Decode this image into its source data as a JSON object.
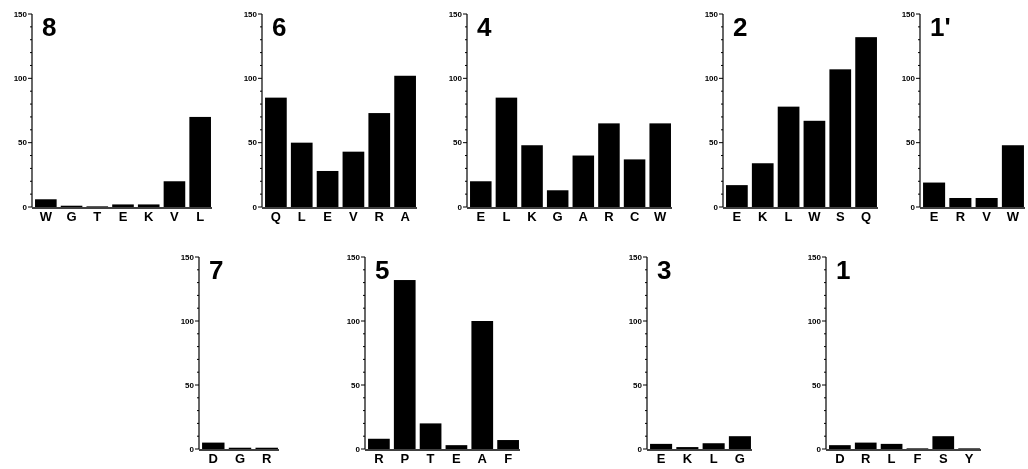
{
  "chart_data": [
    {
      "type": "bar",
      "title": "8",
      "categories": [
        "W",
        "G",
        "T",
        "E",
        "K",
        "V",
        "L"
      ],
      "values": [
        6,
        1,
        0.5,
        2,
        2,
        20,
        70
      ],
      "color": "#000000",
      "ylim": [
        0,
        150
      ],
      "yticks": [
        0,
        {
          "value": 10,
          "label": null
        },
        {
          "value": 20,
          "label": null
        },
        {
          "value": 30,
          "label": null
        },
        {
          "value": 40,
          "label": null
        },
        50,
        {
          "value": 60,
          "label": null
        },
        {
          "value": 70,
          "label": null
        },
        {
          "value": 80,
          "label": null
        },
        {
          "value": 90,
          "label": null
        },
        100,
        {
          "value": 110,
          "label": null
        },
        {
          "value": 120,
          "label": null
        },
        {
          "value": 130,
          "label": null
        },
        {
          "value": 140,
          "label": null
        },
        150
      ]
    },
    {
      "type": "bar",
      "title": "6",
      "categories": [
        "Q",
        "L",
        "E",
        "V",
        "R",
        "A"
      ],
      "values": [
        85,
        50,
        28,
        43,
        73,
        102
      ],
      "color": "#000000",
      "ylim": [
        0,
        150
      ],
      "yticks": [
        0,
        {
          "value": 10,
          "label": null
        },
        {
          "value": 20,
          "label": null
        },
        {
          "value": 30,
          "label": null
        },
        {
          "value": 40,
          "label": null
        },
        50,
        {
          "value": 60,
          "label": null
        },
        {
          "value": 70,
          "label": null
        },
        {
          "value": 80,
          "label": null
        },
        {
          "value": 90,
          "label": null
        },
        100,
        {
          "value": 110,
          "label": null
        },
        {
          "value": 120,
          "label": null
        },
        {
          "value": 130,
          "label": null
        },
        {
          "value": 140,
          "label": null
        },
        150
      ]
    },
    {
      "type": "bar",
      "title": "4",
      "categories": [
        "E",
        "L",
        "K",
        "G",
        "A",
        "R",
        "C",
        "W"
      ],
      "values": [
        20,
        85,
        48,
        13,
        40,
        65,
        37,
        65
      ],
      "color": "#000000",
      "ylim": [
        0,
        150
      ],
      "yticks": [
        0,
        {
          "value": 10,
          "label": null
        },
        {
          "value": 20,
          "label": null
        },
        {
          "value": 30,
          "label": null
        },
        {
          "value": 40,
          "label": null
        },
        50,
        {
          "value": 60,
          "label": null
        },
        {
          "value": 70,
          "label": null
        },
        {
          "value": 80,
          "label": null
        },
        {
          "value": 90,
          "label": null
        },
        100,
        {
          "value": 110,
          "label": null
        },
        {
          "value": 120,
          "label": null
        },
        {
          "value": 130,
          "label": null
        },
        {
          "value": 140,
          "label": null
        },
        150
      ]
    },
    {
      "type": "bar",
      "title": "2",
      "categories": [
        "E",
        "K",
        "L",
        "W",
        "S",
        "Q"
      ],
      "values": [
        17,
        34,
        78,
        67,
        107,
        132
      ],
      "color": "#000000",
      "ylim": [
        0,
        150
      ],
      "yticks": [
        0,
        {
          "value": 10,
          "label": null
        },
        {
          "value": 20,
          "label": null
        },
        {
          "value": 30,
          "label": null
        },
        {
          "value": 40,
          "label": null
        },
        50,
        {
          "value": 60,
          "label": null
        },
        {
          "value": 70,
          "label": null
        },
        {
          "value": 80,
          "label": null
        },
        {
          "value": 90,
          "label": null
        },
        100,
        {
          "value": 110,
          "label": null
        },
        {
          "value": 120,
          "label": null
        },
        {
          "value": 130,
          "label": null
        },
        {
          "value": 140,
          "label": null
        },
        150
      ]
    },
    {
      "type": "bar",
      "title": "1'",
      "categories": [
        "E",
        "R",
        "V",
        "W"
      ],
      "values": [
        19,
        7,
        7,
        48
      ],
      "color": "#000000",
      "ylim": [
        0,
        150
      ],
      "yticks": [
        0,
        {
          "value": 10,
          "label": null
        },
        {
          "value": 20,
          "label": null
        },
        {
          "value": 30,
          "label": null
        },
        {
          "value": 40,
          "label": null
        },
        50,
        {
          "value": 60,
          "label": null
        },
        {
          "value": 70,
          "label": null
        },
        {
          "value": 80,
          "label": null
        },
        {
          "value": 90,
          "label": null
        },
        100,
        {
          "value": 110,
          "label": null
        },
        {
          "value": 120,
          "label": null
        },
        {
          "value": 130,
          "label": null
        },
        {
          "value": 140,
          "label": null
        },
        150
      ]
    },
    {
      "type": "bar",
      "title": "7",
      "categories": [
        "D",
        "G",
        "R"
      ],
      "values": [
        5,
        1,
        1
      ],
      "color": "#000000",
      "ylim": [
        0,
        150
      ],
      "yticks": [
        0,
        {
          "value": 10,
          "label": null
        },
        {
          "value": 20,
          "label": null
        },
        {
          "value": 30,
          "label": null
        },
        {
          "value": 40,
          "label": null
        },
        50,
        {
          "value": 60,
          "label": null
        },
        {
          "value": 70,
          "label": null
        },
        {
          "value": 80,
          "label": null
        },
        {
          "value": 90,
          "label": null
        },
        100,
        {
          "value": 110,
          "label": null
        },
        {
          "value": 120,
          "label": null
        },
        {
          "value": 130,
          "label": null
        },
        {
          "value": 140,
          "label": null
        },
        150
      ]
    },
    {
      "type": "bar",
      "title": "5",
      "categories": [
        "R",
        "P",
        "T",
        "E",
        "A",
        "F"
      ],
      "values": [
        8,
        132,
        20,
        3,
        100,
        7
      ],
      "color": "#000000",
      "ylim": [
        0,
        150
      ],
      "yticks": [
        0,
        {
          "value": 10,
          "label": null
        },
        {
          "value": 20,
          "label": null
        },
        {
          "value": 30,
          "label": null
        },
        {
          "value": 40,
          "label": null
        },
        50,
        {
          "value": 60,
          "label": null
        },
        {
          "value": 70,
          "label": null
        },
        {
          "value": 80,
          "label": null
        },
        {
          "value": 90,
          "label": null
        },
        100,
        {
          "value": 110,
          "label": null
        },
        {
          "value": 120,
          "label": null
        },
        {
          "value": 130,
          "label": null
        },
        {
          "value": 140,
          "label": null
        },
        150
      ]
    },
    {
      "type": "bar",
      "title": "3",
      "categories": [
        "E",
        "K",
        "L",
        "G"
      ],
      "values": [
        4,
        1.5,
        4.5,
        10
      ],
      "color": "#000000",
      "ylim": [
        0,
        150
      ],
      "yticks": [
        0,
        {
          "value": 10,
          "label": null
        },
        {
          "value": 20,
          "label": null
        },
        {
          "value": 30,
          "label": null
        },
        {
          "value": 40,
          "label": null
        },
        50,
        {
          "value": 60,
          "label": null
        },
        {
          "value": 70,
          "label": null
        },
        {
          "value": 80,
          "label": null
        },
        {
          "value": 90,
          "label": null
        },
        100,
        {
          "value": 110,
          "label": null
        },
        {
          "value": 120,
          "label": null
        },
        {
          "value": 130,
          "label": null
        },
        {
          "value": 140,
          "label": null
        },
        150
      ]
    },
    {
      "type": "bar",
      "title": "1",
      "categories": [
        "D",
        "R",
        "L",
        "F",
        "S",
        "Y"
      ],
      "values": [
        3,
        5,
        4,
        0.5,
        10,
        0.5
      ],
      "color": "#000000",
      "ylim": [
        0,
        150
      ],
      "yticks": [
        0,
        {
          "value": 10,
          "label": null
        },
        {
          "value": 20,
          "label": null
        },
        {
          "value": 30,
          "label": null
        },
        {
          "value": 40,
          "label": null
        },
        50,
        {
          "value": 60,
          "label": null
        },
        {
          "value": 70,
          "label": null
        },
        {
          "value": 80,
          "label": null
        },
        {
          "value": 90,
          "label": null
        },
        100,
        {
          "value": 110,
          "label": null
        },
        {
          "value": 120,
          "label": null
        },
        {
          "value": 130,
          "label": null
        },
        {
          "value": 140,
          "label": null
        },
        150
      ]
    }
  ]
}
